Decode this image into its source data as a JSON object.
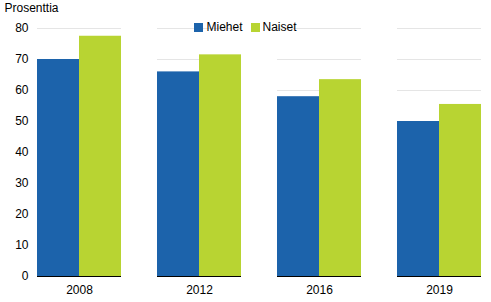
{
  "chart_data": {
    "type": "bar",
    "y_label": "Prosenttia",
    "categories": [
      "2008",
      "2012",
      "2016",
      "2019"
    ],
    "series": [
      {
        "name": "Miehet",
        "color": "#1c63ab",
        "values": [
          70,
          66,
          58,
          50
        ]
      },
      {
        "name": "Naiset",
        "color": "#b8d432",
        "values": [
          77.5,
          71.5,
          63.5,
          55.5
        ]
      }
    ],
    "ylim": [
      0,
      80
    ],
    "yticks": [
      0,
      10,
      20,
      30,
      40,
      50,
      60,
      70,
      80
    ],
    "grid": true,
    "legend": "top"
  }
}
